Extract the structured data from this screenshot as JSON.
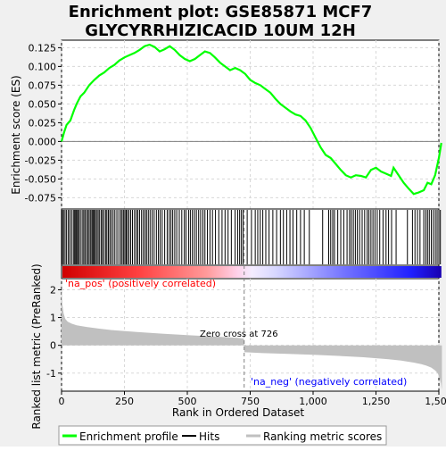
{
  "chart_data": {
    "type": "line",
    "title_line1": "Enrichment plot: GSE85871 MCF7",
    "title_line2": "GLYCYRRHIZICACID 10UM 12H",
    "xlabel": "Rank in Ordered Dataset",
    "es_ylabel": "Enrichment score (ES)",
    "metric_ylabel": "Ranked list metric (PreRanked)",
    "xlim": [
      0,
      1500
    ],
    "x_ticks": [
      "0",
      "250",
      "500",
      "750",
      "1,000",
      "1,250",
      "1,500"
    ],
    "x_tick_values": [
      0,
      250,
      500,
      750,
      1000,
      1250,
      1500
    ],
    "es_ylim": [
      -0.09,
      0.135
    ],
    "es_ticks": [
      "0.125",
      "0.100",
      "0.075",
      "0.050",
      "0.025",
      "0.000",
      "-0.025",
      "-0.050",
      "-0.075"
    ],
    "es_tick_values": [
      0.125,
      0.1,
      0.075,
      0.05,
      0.025,
      0.0,
      -0.025,
      -0.05,
      -0.075
    ],
    "metric_ylim": [
      -1.65,
      2.4
    ],
    "metric_ticks": [
      "2",
      "1",
      "0",
      "-1"
    ],
    "metric_tick_values": [
      2,
      1,
      0,
      -1
    ],
    "zero_cross_label": "Zero cross at 726",
    "zero_cross_rank": 726,
    "pos_label": "'na_pos' (positively correlated)",
    "neg_label": "'na_neg' (negatively correlated)",
    "enrichment_profile": {
      "x": [
        0,
        10,
        20,
        35,
        50,
        60,
        75,
        90,
        110,
        130,
        150,
        170,
        190,
        210,
        230,
        250,
        270,
        290,
        310,
        330,
        350,
        370,
        390,
        410,
        430,
        450,
        470,
        490,
        510,
        530,
        550,
        570,
        590,
        610,
        630,
        650,
        670,
        690,
        710,
        730,
        750,
        770,
        790,
        810,
        830,
        850,
        870,
        890,
        910,
        930,
        950,
        970,
        990,
        1010,
        1030,
        1050,
        1070,
        1090,
        1110,
        1130,
        1150,
        1170,
        1190,
        1210,
        1230,
        1250,
        1270,
        1290,
        1310,
        1320,
        1340,
        1360,
        1380,
        1400,
        1420,
        1440,
        1455,
        1470,
        1485,
        1500,
        1510
      ],
      "y": [
        0.0,
        0.012,
        0.022,
        0.028,
        0.042,
        0.05,
        0.06,
        0.065,
        0.075,
        0.082,
        0.088,
        0.092,
        0.098,
        0.102,
        0.108,
        0.112,
        0.115,
        0.118,
        0.122,
        0.127,
        0.129,
        0.126,
        0.12,
        0.123,
        0.127,
        0.122,
        0.115,
        0.11,
        0.107,
        0.11,
        0.115,
        0.12,
        0.118,
        0.112,
        0.105,
        0.1,
        0.095,
        0.098,
        0.095,
        0.09,
        0.082,
        0.078,
        0.075,
        0.07,
        0.065,
        0.057,
        0.05,
        0.045,
        0.04,
        0.036,
        0.034,
        0.028,
        0.018,
        0.005,
        -0.008,
        -0.018,
        -0.022,
        -0.03,
        -0.038,
        -0.045,
        -0.048,
        -0.045,
        -0.046,
        -0.048,
        -0.038,
        -0.035,
        -0.04,
        -0.043,
        -0.046,
        -0.035,
        -0.045,
        -0.055,
        -0.063,
        -0.07,
        -0.068,
        -0.065,
        -0.055,
        -0.057,
        -0.045,
        -0.022,
        -0.002
      ]
    },
    "hits": [
      3,
      8,
      14,
      20,
      27,
      33,
      40,
      47,
      52,
      56,
      60,
      64,
      69,
      75,
      82,
      88,
      93,
      99,
      105,
      110,
      116,
      121,
      125,
      129,
      134,
      139,
      145,
      150,
      157,
      162,
      168,
      175,
      180,
      186,
      192,
      198,
      205,
      212,
      220,
      228,
      236,
      241,
      247,
      252,
      257,
      262,
      268,
      275,
      282,
      290,
      297,
      303,
      310,
      318,
      325,
      332,
      338,
      345,
      352,
      360,
      368,
      377,
      385,
      392,
      400,
      410,
      420,
      428,
      435,
      442,
      450,
      458,
      468,
      478,
      488,
      495,
      505,
      512,
      520,
      528,
      536,
      545,
      553,
      562,
      570,
      580,
      590,
      600,
      612,
      625,
      638,
      650,
      662,
      675,
      690,
      700,
      708,
      715,
      722,
      738,
      755,
      770,
      780,
      790,
      800,
      812,
      825,
      840,
      855,
      870,
      882,
      895,
      908,
      920,
      935,
      950,
      965,
      985,
      1038,
      1062,
      1070,
      1078,
      1085,
      1098,
      1110,
      1122,
      1135,
      1145,
      1152,
      1160,
      1168,
      1176,
      1185,
      1195,
      1205,
      1215,
      1222,
      1230,
      1238,
      1246,
      1255,
      1265,
      1278,
      1290,
      1300,
      1312,
      1330,
      1375,
      1395,
      1405,
      1415,
      1425,
      1440,
      1448,
      1455,
      1462,
      1470,
      1478,
      1486,
      1493,
      1500,
      1506
    ],
    "metric_samples": {
      "x": [
        0,
        3,
        8,
        15,
        25,
        40,
        60,
        100,
        150,
        200,
        300,
        400,
        500,
        600,
        700,
        725,
        727,
        800,
        900,
        1000,
        1100,
        1200,
        1300,
        1350,
        1400,
        1430,
        1450,
        1470,
        1485,
        1495,
        1502,
        1508,
        1512
      ],
      "y": [
        2.3,
        1.5,
        1.15,
        0.95,
        0.85,
        0.78,
        0.72,
        0.66,
        0.6,
        0.55,
        0.48,
        0.42,
        0.37,
        0.32,
        0.27,
        0.24,
        -0.25,
        -0.28,
        -0.31,
        -0.34,
        -0.38,
        -0.43,
        -0.5,
        -0.55,
        -0.62,
        -0.68,
        -0.73,
        -0.8,
        -0.9,
        -1.0,
        -1.15,
        -1.35,
        -1.6
      ]
    },
    "legend": [
      "Enrichment profile",
      "Hits",
      "Ranking metric scores"
    ],
    "colors": {
      "profile": "#00ff00",
      "hits": "#000000",
      "metric_fill": "#c0c0c0",
      "pos_label": "#ff0000",
      "neg_label": "#0000ff",
      "background": "#f0f0f0",
      "plot_bg": "#ffffff",
      "grid": "#d8d8d8",
      "heat_pos": "#ff0000",
      "heat_neg": "#0000ff"
    },
    "grid": true
  }
}
